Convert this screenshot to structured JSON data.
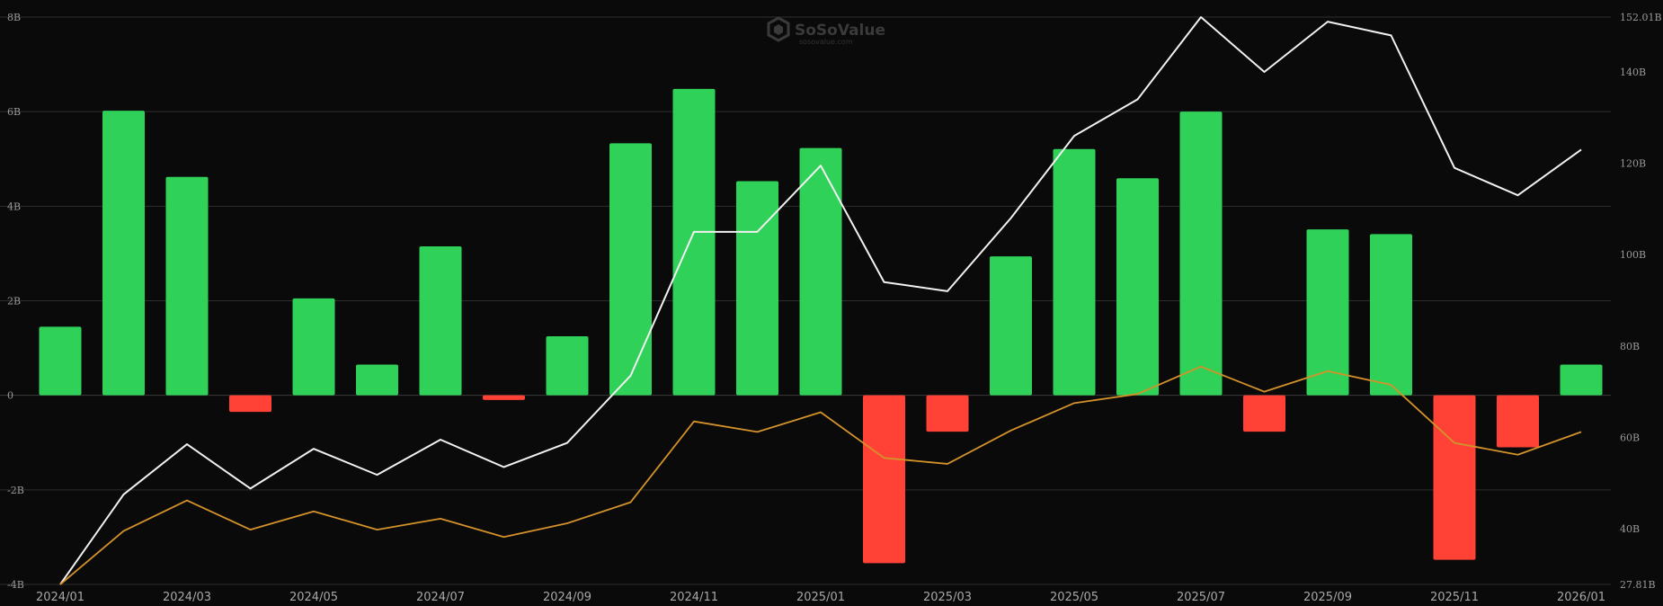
{
  "watermark": {
    "brand": "SoSoValue",
    "sub": "sosovalue.com"
  },
  "colors": {
    "background": "#0a0a0a",
    "positive_bar": "#2fd158",
    "negative_bar": "#ff4136",
    "line_white": "#f2f2f2",
    "line_orange": "#d4922a",
    "grid": "#2e2e2e"
  },
  "chart_data": {
    "type": "bar",
    "categories": [
      "2024/01",
      "2024/02",
      "2024/03",
      "2024/04",
      "2024/05",
      "2024/06",
      "2024/07",
      "2024/08",
      "2024/09",
      "2024/10",
      "2024/11",
      "2024/12",
      "2025/01",
      "2025/02",
      "2025/03",
      "2025/04",
      "2025/05",
      "2025/06",
      "2025/07",
      "2025/08",
      "2025/09",
      "2025/10",
      "2025/11",
      "2025/12",
      "2026/01"
    ],
    "x_tick_labels": [
      "2024/01",
      "2024/03",
      "2024/05",
      "2024/07",
      "2024/09",
      "2024/11",
      "2025/01",
      "2025/03",
      "2025/05",
      "2025/07",
      "2025/09",
      "2025/11",
      "2026/01"
    ],
    "left_axis": {
      "ticks": [
        "8B",
        "6B",
        "4B",
        "2B",
        "0",
        "-2B",
        "-4B"
      ],
      "tick_values": [
        8,
        6,
        4,
        2,
        0,
        -2,
        -4
      ],
      "ylim": [
        -4,
        8
      ],
      "unit": "B"
    },
    "right_axis": {
      "ticks": [
        "152.01B",
        "140B",
        "120B",
        "100B",
        "80B",
        "60B",
        "40B",
        "27.81B"
      ],
      "tick_values": [
        152.01,
        140,
        120,
        100,
        80,
        60,
        40,
        27.81
      ],
      "ylim": [
        27.81,
        152.01
      ],
      "unit": "B"
    },
    "bars": {
      "axis": "left",
      "values": [
        1.45,
        6.02,
        4.62,
        -0.35,
        2.05,
        0.65,
        3.15,
        -0.1,
        1.25,
        5.33,
        6.48,
        4.53,
        5.23,
        -3.55,
        -0.77,
        2.94,
        5.21,
        4.59,
        6.0,
        -0.77,
        3.51,
        3.41,
        -3.48,
        -1.1,
        0.65
      ]
    },
    "series": [
      {
        "type": "line",
        "axis": "right",
        "color": "#f2f2f2",
        "values": [
          27.81,
          47.5,
          58.5,
          48.8,
          57.5,
          51.8,
          59.5,
          53.5,
          58.8,
          73.5,
          105,
          105,
          119.5,
          94,
          92,
          108,
          126,
          134,
          152.01,
          140,
          151,
          148,
          119,
          113,
          123
        ]
      },
      {
        "type": "line",
        "axis": "right",
        "color": "#d4922a",
        "values": [
          27.81,
          39.5,
          46.2,
          39.8,
          43.8,
          39.8,
          42.2,
          38.2,
          41.2,
          45.8,
          63.5,
          61.2,
          65.5,
          55.5,
          54.2,
          61.5,
          67.5,
          69.5,
          75.5,
          70,
          74.5,
          71.5,
          58.8,
          56.2,
          61.2
        ]
      }
    ],
    "grid": true,
    "legend": "none"
  }
}
